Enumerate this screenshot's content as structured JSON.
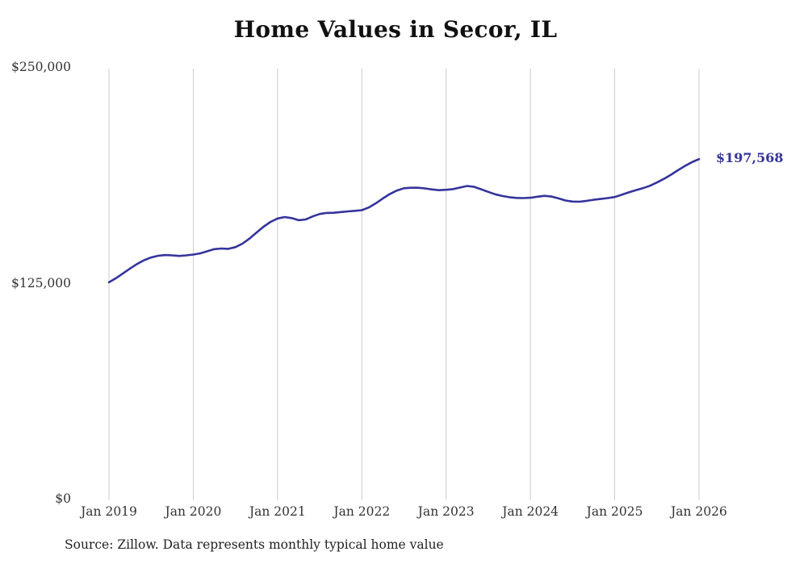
{
  "chart_data": {
    "type": "line",
    "title": "Home Values in Secor, IL",
    "source": "Source: Zillow. Data represents monthly typical home value",
    "end_label": "$197,568",
    "latest_value": 197568,
    "line_color": "#34349C",
    "grid_color": "#cccccc",
    "ylim": [
      0,
      250000
    ],
    "grid": "vertical-only",
    "legend": "none",
    "y_ticks": [
      {
        "label": "$250,000",
        "value": 250000
      },
      {
        "label": "$125,000",
        "value": 125000
      },
      {
        "label": "$0",
        "value": 0
      }
    ],
    "x_ticks": [
      "Jan 2019",
      "Jan 2020",
      "Jan 2021",
      "Jan 2022",
      "Jan 2023",
      "Jan 2024",
      "Jan 2025",
      "Jan 2026"
    ],
    "x_start": "Jan 2019",
    "x_end": "Jan 2026",
    "frequency": "monthly",
    "series": [
      {
        "name": "Typical home value",
        "values": [
          126200,
          128600,
          131400,
          134200,
          136800,
          139000,
          140600,
          141600,
          142000,
          141800,
          141500,
          141800,
          142300,
          143000,
          144200,
          145400,
          145800,
          145600,
          146600,
          148600,
          151500,
          155000,
          158400,
          161200,
          163200,
          164000,
          163400,
          162200,
          162600,
          164400,
          165800,
          166400,
          166500,
          166900,
          167300,
          167600,
          168000,
          169600,
          172000,
          174800,
          177400,
          179400,
          180700,
          181000,
          181000,
          180600,
          180000,
          179600,
          179800,
          180200,
          181100,
          182000,
          181500,
          180100,
          178600,
          177200,
          176200,
          175500,
          175100,
          175000,
          175200,
          175800,
          176300,
          175900,
          174800,
          173600,
          173000,
          172900,
          173400,
          174000,
          174500,
          175000,
          175600,
          176900,
          178300,
          179600,
          180700,
          182100,
          184000,
          186100,
          188500,
          191100,
          193600,
          195800,
          197568
        ]
      }
    ]
  }
}
